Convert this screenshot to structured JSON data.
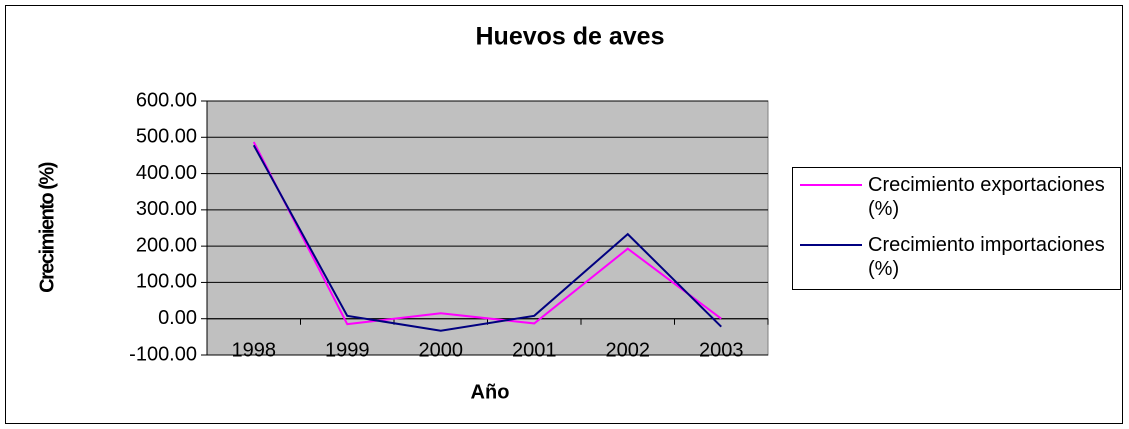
{
  "chart_data": {
    "type": "line",
    "title": "Huevos de aves",
    "x_label": "Año",
    "y_label": "Crecimiento (%)",
    "categories": [
      "1998",
      "1999",
      "2000",
      "2001",
      "2002",
      "2003"
    ],
    "series": [
      {
        "name": "Crecimiento exportaciones (%)",
        "color": "#ff00ff",
        "values": [
          487,
          -15,
          15,
          -13,
          193,
          0
        ]
      },
      {
        "name": "Crecimiento importaciones (%)",
        "color": "#000080",
        "values": [
          478,
          8,
          -33,
          8,
          233,
          -22
        ]
      }
    ],
    "ylim": [
      -100,
      600
    ],
    "yticks": [
      {
        "value": -100,
        "label": "-100.00"
      },
      {
        "value": 0,
        "label": "0.00"
      },
      {
        "value": 100,
        "label": "100.00"
      },
      {
        "value": 200,
        "label": "200.00"
      },
      {
        "value": 300,
        "label": "300.00"
      },
      {
        "value": 400,
        "label": "400.00"
      },
      {
        "value": 500,
        "label": "500.00"
      },
      {
        "value": 600,
        "label": "600.00"
      }
    ],
    "grid": true,
    "legend": "right",
    "plot_background": "#c0c0c0"
  }
}
